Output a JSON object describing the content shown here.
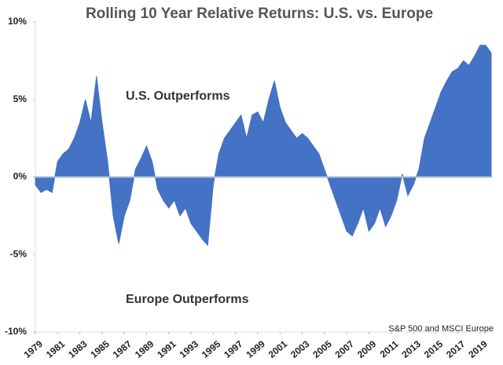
{
  "chart_data": {
    "type": "area",
    "title": "Rolling 10 Year Relative Returns: U.S. vs. Europe",
    "annotations": [
      "U.S. Outperforms",
      "Europe Outperforms"
    ],
    "source": "S&P 500 and MSCI Europe",
    "color": "#4472c4",
    "x": [
      1979.0,
      1979.5,
      1980.0,
      1980.5,
      1981.0,
      1981.5,
      1982.0,
      1982.5,
      1983.0,
      1983.5,
      1984.0,
      1984.5,
      1985.0,
      1985.5,
      1986.0,
      1986.5,
      1987.0,
      1987.5,
      1988.0,
      1988.5,
      1989.0,
      1989.5,
      1990.0,
      1990.5,
      1991.0,
      1991.5,
      1992.0,
      1992.5,
      1993.0,
      1993.5,
      1994.0,
      1994.5,
      1995.0,
      1995.5,
      1996.0,
      1996.5,
      1997.0,
      1997.5,
      1998.0,
      1998.5,
      1999.0,
      1999.5,
      2000.0,
      2000.5,
      2001.0,
      2001.5,
      2002.0,
      2002.5,
      2003.0,
      2003.5,
      2004.0,
      2004.5,
      2005.0,
      2005.5,
      2006.0,
      2006.5,
      2007.0,
      2007.5,
      2008.0,
      2008.5,
      2009.0,
      2009.5,
      2010.0,
      2010.5,
      2011.0,
      2011.5,
      2012.0,
      2012.5,
      2013.0,
      2013.5,
      2014.0,
      2014.5,
      2015.0,
      2015.5,
      2016.0,
      2016.5,
      2017.0,
      2017.5,
      2018.0,
      2018.5,
      2019.0,
      2019.5,
      2020.0
    ],
    "values": [
      -0.5,
      -1.0,
      -0.8,
      -1.0,
      1.0,
      1.5,
      1.8,
      2.5,
      3.5,
      5.0,
      3.5,
      6.5,
      3.5,
      1.0,
      -2.5,
      -4.3,
      -2.5,
      -1.5,
      0.5,
      1.2,
      2.0,
      1.0,
      -0.8,
      -1.5,
      -2.0,
      -1.5,
      -2.5,
      -2.0,
      -3.0,
      -3.5,
      -4.0,
      -4.4,
      -0.5,
      1.5,
      2.5,
      3.0,
      3.5,
      4.0,
      2.5,
      4.0,
      4.2,
      3.5,
      5.0,
      6.2,
      4.5,
      3.5,
      3.0,
      2.5,
      2.8,
      2.5,
      2.0,
      1.5,
      0.5,
      -0.5,
      -1.5,
      -2.5,
      -3.5,
      -3.8,
      -3.0,
      -2.0,
      -3.5,
      -3.0,
      -2.0,
      -3.2,
      -2.5,
      -1.5,
      0.2,
      -1.2,
      -0.5,
      0.5,
      2.5,
      3.5,
      4.5,
      5.5,
      6.2,
      6.8,
      7.0,
      7.5,
      7.2,
      7.8,
      8.5,
      8.5,
      8.0
    ],
    "xlim": [
      1979,
      2020
    ],
    "xticks": [
      1979,
      1981,
      1983,
      1985,
      1987,
      1989,
      1991,
      1993,
      1995,
      1997,
      1999,
      2001,
      2003,
      2005,
      2007,
      2009,
      2011,
      2013,
      2015,
      2017,
      2019
    ],
    "ylim": [
      -10,
      10
    ],
    "yticks": [
      {
        "value": 10,
        "label": "10%"
      },
      {
        "value": 5,
        "label": "5%"
      },
      {
        "value": 0,
        "label": "0%"
      },
      {
        "value": -5,
        "label": "-5%"
      },
      {
        "value": -10,
        "label": "-10%"
      }
    ]
  }
}
